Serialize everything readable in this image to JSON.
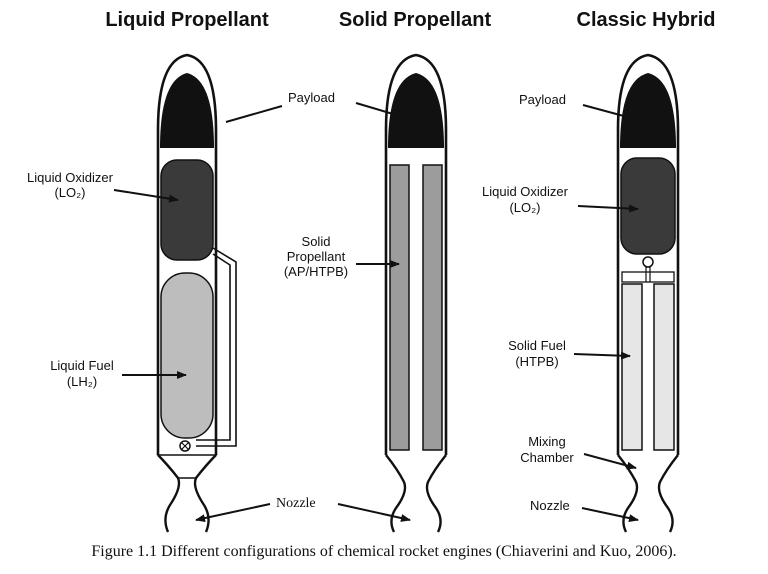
{
  "titles": {
    "liquid": "Liquid Propellant",
    "solid": "Solid Propellant",
    "hybrid": "Classic Hybrid"
  },
  "labels": {
    "payload": "Payload",
    "liquid_oxidizer": "Liquid Oxidizer",
    "lo2": "(LO₂)",
    "liquid_fuel": "Liquid Fuel",
    "lh2": "(LH₂)",
    "solid_propellant_1": "Solid",
    "solid_propellant_2": "Propellant",
    "solid_propellant_3": "(AP/HTPB)",
    "solid_fuel": "Solid Fuel",
    "htpb": "(HTPB)",
    "mixing_1": "Mixing",
    "mixing_2": "Chamber",
    "nozzle": "Nozzle"
  },
  "caption": "Figure 1.1 Different configurations of chemical rocket engines (Chiaverini and Kuo, 2006).",
  "colors": {
    "payload": "#111111",
    "oxidizer": "#3a3a3a",
    "liquid_fuel": "#bdbdbd",
    "solid_grain": "#9c9c9c",
    "hybrid_fuel": "#e6e6e6"
  }
}
